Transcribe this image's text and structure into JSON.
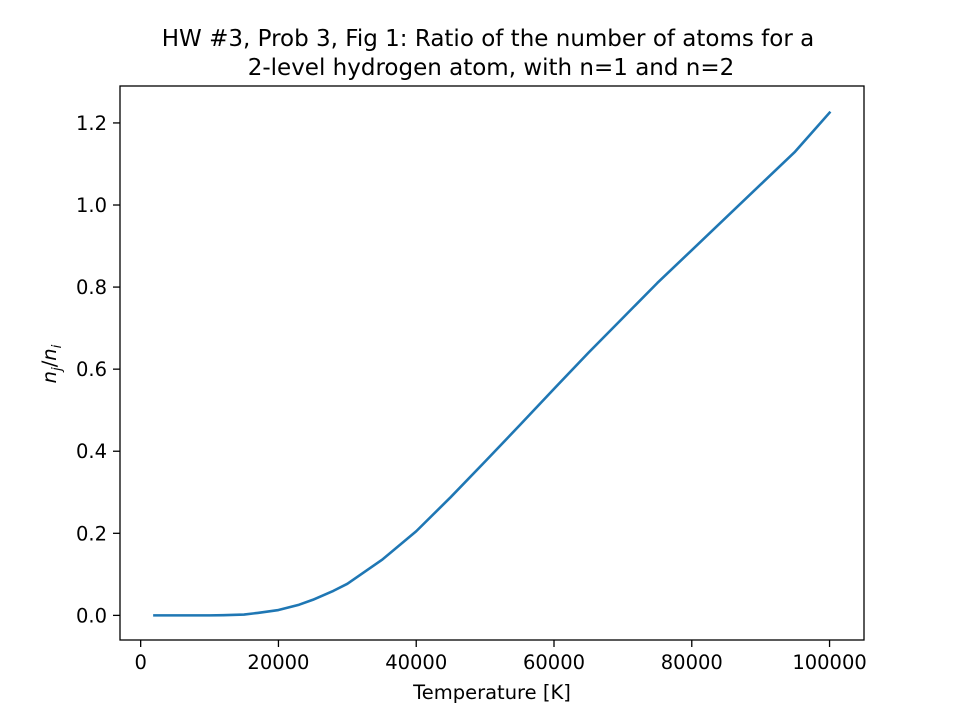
{
  "chart_data": {
    "type": "line",
    "title_line1": "HW #3, Prob 3, Fig 1: Ratio of the number of atoms for a",
    "title_line2": "2-level hydrogen atom, with n=1 and n=2",
    "xlabel": "Temperature [K]",
    "ylabel": {
      "n1": "n",
      "s1": "j",
      "slash": "/",
      "n2": "n",
      "s2": "i"
    },
    "xlim": [
      -3000,
      105000
    ],
    "ylim": [
      -0.06,
      1.29
    ],
    "x_ticks": [
      0,
      20000,
      40000,
      60000,
      80000,
      100000
    ],
    "x_tick_labels": [
      "0",
      "20000",
      "40000",
      "60000",
      "80000",
      "100000"
    ],
    "y_ticks": [
      0.0,
      0.2,
      0.4,
      0.6,
      0.8,
      1.0,
      1.2
    ],
    "y_tick_labels": [
      "0.0",
      "0.2",
      "0.4",
      "0.6",
      "0.8",
      "1.0",
      "1.2"
    ],
    "grid": false,
    "legend": "none",
    "series": [
      {
        "color": "#1f77b4",
        "x": [
          2000,
          5000,
          10000,
          12000,
          15000,
          17000,
          20000,
          23000,
          25000,
          28000,
          30000,
          35000,
          40000,
          45000,
          50000,
          55000,
          60000,
          65000,
          70000,
          75000,
          80000,
          85000,
          90000,
          95000,
          100000
        ],
        "y": [
          0.0,
          0.0,
          0.0,
          0.0004,
          0.002,
          0.006,
          0.013,
          0.026,
          0.038,
          0.06,
          0.077,
          0.135,
          0.205,
          0.288,
          0.375,
          0.463,
          0.552,
          0.64,
          0.725,
          0.81,
          0.89,
          0.97,
          1.05,
          1.13,
          1.225
        ]
      }
    ]
  }
}
